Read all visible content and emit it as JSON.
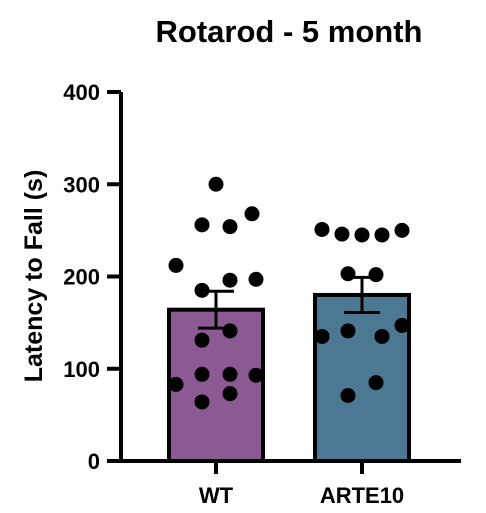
{
  "chart_data": {
    "type": "bar",
    "title": "Rotarod - 5 month",
    "xlabel": "",
    "ylabel": "Latency to Fall (s)",
    "ylim": [
      0,
      400
    ],
    "yticks": [
      "0",
      "100",
      "200",
      "300",
      "400"
    ],
    "categories": [
      "WT",
      "ARTE10"
    ],
    "colors": [
      "#8B5A92",
      "#4D7894"
    ],
    "values": [
      164,
      180
    ],
    "sem": [
      20,
      19
    ],
    "points": [
      [
        300,
        268,
        256,
        254,
        212,
        197,
        196,
        185,
        141,
        131,
        94,
        94,
        93,
        83,
        73,
        64
      ],
      [
        251,
        246,
        245,
        245,
        250,
        203,
        202,
        147,
        141,
        135,
        135,
        85,
        71
      ]
    ]
  }
}
